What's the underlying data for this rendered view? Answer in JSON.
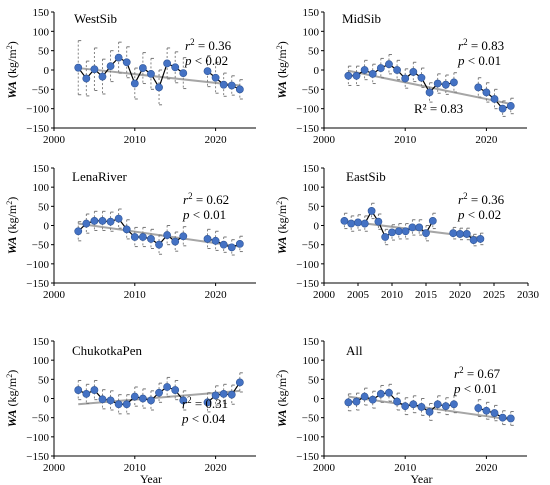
{
  "figure": {
    "xlabel": "Year",
    "ylabel_main": "WA",
    "ylabel_unit": "(kg/m",
    "ylabel_sup": "2",
    "ylabel_close": ")"
  },
  "chart_data": [
    {
      "type": "line",
      "title": "WestSib",
      "xlabel": "",
      "ylabel": "WA (kg/m²)",
      "xlim": [
        2000,
        2025
      ],
      "ylim": [
        -150,
        150
      ],
      "xticks": [
        2000,
        2010,
        2020
      ],
      "yticks": [
        -150,
        -100,
        -50,
        0,
        50,
        100,
        150
      ],
      "r2": "0.36",
      "p": "0.02",
      "series": [
        {
          "values": [
            [
              2003,
              6
            ],
            [
              2004,
              -22
            ],
            [
              2005,
              2
            ],
            [
              2006,
              -17
            ],
            [
              2007,
              10
            ],
            [
              2008,
              32
            ],
            [
              2009,
              20
            ],
            [
              2010,
              -35
            ],
            [
              2011,
              5
            ],
            [
              2012,
              -10
            ],
            [
              2013,
              -45
            ],
            [
              2014,
              17
            ],
            [
              2015,
              7
            ],
            [
              2016,
              -8
            ],
            [
              2019,
              -3
            ],
            [
              2020,
              -20
            ],
            [
              2021,
              -38
            ],
            [
              2022,
              -40
            ],
            [
              2023,
              -50
            ]
          ],
          "errors": [
            70,
            45,
            55,
            45,
            40,
            40,
            40,
            40,
            40,
            40,
            45,
            40,
            40,
            40,
            40,
            40,
            30,
            25,
            25
          ]
        }
      ],
      "trend": [
        [
          2003,
          5
        ],
        [
          2023,
          -40
        ]
      ]
    },
    {
      "type": "line",
      "title": "MidSib",
      "xlabel": "",
      "ylabel": "WA (kg/m²)",
      "xlim": [
        2000,
        2025
      ],
      "ylim": [
        -150,
        150
      ],
      "xticks": [
        2000,
        2010,
        2020
      ],
      "yticks": [
        -150,
        -100,
        -50,
        0,
        50,
        100,
        150
      ],
      "r2": "0.83",
      "p": "0.01",
      "annotation": "R² = 0.83",
      "series": [
        {
          "values": [
            [
              2003,
              -15
            ],
            [
              2004,
              -15
            ],
            [
              2005,
              0
            ],
            [
              2006,
              -10
            ],
            [
              2007,
              5
            ],
            [
              2008,
              15
            ],
            [
              2009,
              0
            ],
            [
              2010,
              -22
            ],
            [
              2011,
              -5
            ],
            [
              2012,
              -20
            ],
            [
              2013,
              -58
            ],
            [
              2014,
              -35
            ],
            [
              2015,
              -38
            ],
            [
              2016,
              -32
            ],
            [
              2019,
              -45
            ],
            [
              2020,
              -58
            ],
            [
              2021,
              -75
            ],
            [
              2022,
              -100
            ],
            [
              2023,
              -93
            ]
          ],
          "errors": [
            25,
            25,
            25,
            25,
            25,
            25,
            25,
            25,
            25,
            25,
            25,
            25,
            25,
            25,
            25,
            25,
            25,
            20,
            20
          ]
        }
      ],
      "trend": [
        [
          2003,
          -2
        ],
        [
          2023,
          -88
        ]
      ]
    },
    {
      "type": "line",
      "title": "LenaRiver",
      "xlabel": "",
      "ylabel": "WA (kg/m²)",
      "xlim": [
        2000,
        2025
      ],
      "ylim": [
        -150,
        150
      ],
      "xticks": [
        2000,
        2010,
        2020
      ],
      "yticks": [
        -150,
        -100,
        -50,
        0,
        50,
        100,
        150
      ],
      "r2": "0.62",
      "p": "0.01",
      "series": [
        {
          "values": [
            [
              2003,
              -15
            ],
            [
              2004,
              5
            ],
            [
              2005,
              12
            ],
            [
              2006,
              12
            ],
            [
              2007,
              10
            ],
            [
              2008,
              18
            ],
            [
              2009,
              -10
            ],
            [
              2010,
              -30
            ],
            [
              2011,
              -30
            ],
            [
              2012,
              -35
            ],
            [
              2013,
              -50
            ],
            [
              2014,
              -25
            ],
            [
              2015,
              -42
            ],
            [
              2016,
              -28
            ],
            [
              2019,
              -35
            ],
            [
              2020,
              -40
            ],
            [
              2021,
              -50
            ],
            [
              2022,
              -57
            ],
            [
              2023,
              -48
            ]
          ],
          "errors": [
            25,
            25,
            25,
            25,
            25,
            25,
            25,
            25,
            25,
            25,
            25,
            25,
            25,
            25,
            25,
            25,
            20,
            20,
            20
          ]
        }
      ],
      "trend": [
        [
          2003,
          5
        ],
        [
          2023,
          -55
        ]
      ]
    },
    {
      "type": "line",
      "title": "EastSib",
      "xlabel": "",
      "ylabel": "WA (kg/m²)",
      "xlim": [
        2000,
        2030
      ],
      "ylim": [
        -150,
        150
      ],
      "xticks": [
        2000,
        2005,
        2010,
        2015,
        2020,
        2025,
        2030
      ],
      "yticks": [
        -150,
        -100,
        -50,
        0,
        50,
        100,
        150
      ],
      "r2": "0.36",
      "p": "0.02",
      "series": [
        {
          "values": [
            [
              2003,
              12
            ],
            [
              2004,
              5
            ],
            [
              2005,
              8
            ],
            [
              2006,
              5
            ],
            [
              2007,
              38
            ],
            [
              2008,
              10
            ],
            [
              2009,
              -30
            ],
            [
              2010,
              -18
            ],
            [
              2011,
              -15
            ],
            [
              2012,
              -15
            ],
            [
              2013,
              -5
            ],
            [
              2014,
              -5
            ],
            [
              2015,
              -20
            ],
            [
              2016,
              12
            ],
            [
              2019,
              -20
            ],
            [
              2020,
              -22
            ],
            [
              2021,
              -22
            ],
            [
              2022,
              -38
            ],
            [
              2023,
              -35
            ]
          ],
          "errors": [
            20,
            20,
            20,
            20,
            20,
            20,
            20,
            20,
            20,
            20,
            20,
            20,
            20,
            20,
            15,
            15,
            15,
            15,
            15
          ]
        }
      ],
      "trend": [
        [
          2003,
          12
        ],
        [
          2023,
          -32
        ]
      ]
    },
    {
      "type": "line",
      "title": "ChukotkaPen",
      "xlabel": "Year",
      "ylabel": "WA (kg/m²)",
      "xlim": [
        2000,
        2025
      ],
      "ylim": [
        -150,
        150
      ],
      "xticks": [
        2000,
        2010,
        2020
      ],
      "yticks": [
        -150,
        -100,
        -50,
        0,
        50,
        100,
        150
      ],
      "r2": "0.31",
      "p": "0.04",
      "series": [
        {
          "values": [
            [
              2003,
              22
            ],
            [
              2004,
              12
            ],
            [
              2005,
              22
            ],
            [
              2006,
              -2
            ],
            [
              2007,
              -5
            ],
            [
              2008,
              -15
            ],
            [
              2009,
              -15
            ],
            [
              2010,
              5
            ],
            [
              2011,
              0
            ],
            [
              2012,
              -5
            ],
            [
              2013,
              15
            ],
            [
              2014,
              30
            ],
            [
              2015,
              22
            ],
            [
              2016,
              -5
            ],
            [
              2019,
              -10
            ],
            [
              2020,
              8
            ],
            [
              2021,
              12
            ],
            [
              2022,
              10
            ],
            [
              2023,
              42
            ]
          ],
          "errors": [
            25,
            25,
            25,
            25,
            25,
            25,
            25,
            25,
            25,
            25,
            25,
            25,
            25,
            25,
            25,
            25,
            25,
            25,
            25
          ]
        }
      ],
      "trend": [
        [
          2003,
          -15
        ],
        [
          2023,
          20
        ]
      ]
    },
    {
      "type": "line",
      "title": "All",
      "xlabel": "Year",
      "ylabel": "WA (kg/m²)",
      "xlim": [
        2000,
        2025
      ],
      "ylim": [
        -150,
        150
      ],
      "xticks": [
        2000,
        2010,
        2020
      ],
      "yticks": [
        -150,
        -100,
        -50,
        0,
        50,
        100,
        150
      ],
      "r2": "0.67",
      "p": "0.01",
      "series": [
        {
          "values": [
            [
              2003,
              -10
            ],
            [
              2004,
              -8
            ],
            [
              2005,
              5
            ],
            [
              2006,
              -3
            ],
            [
              2007,
              12
            ],
            [
              2008,
              15
            ],
            [
              2009,
              -8
            ],
            [
              2010,
              -20
            ],
            [
              2011,
              -15
            ],
            [
              2012,
              -22
            ],
            [
              2013,
              -35
            ],
            [
              2014,
              -15
            ],
            [
              2015,
              -20
            ],
            [
              2016,
              -15
            ],
            [
              2019,
              -25
            ],
            [
              2020,
              -32
            ],
            [
              2021,
              -38
            ],
            [
              2022,
              -50
            ],
            [
              2023,
              -52
            ]
          ],
          "errors": [
            22,
            22,
            22,
            22,
            22,
            22,
            22,
            22,
            22,
            22,
            22,
            22,
            22,
            22,
            22,
            22,
            20,
            18,
            18
          ]
        }
      ],
      "trend": [
        [
          2003,
          5
        ],
        [
          2023,
          -55
        ]
      ]
    }
  ]
}
